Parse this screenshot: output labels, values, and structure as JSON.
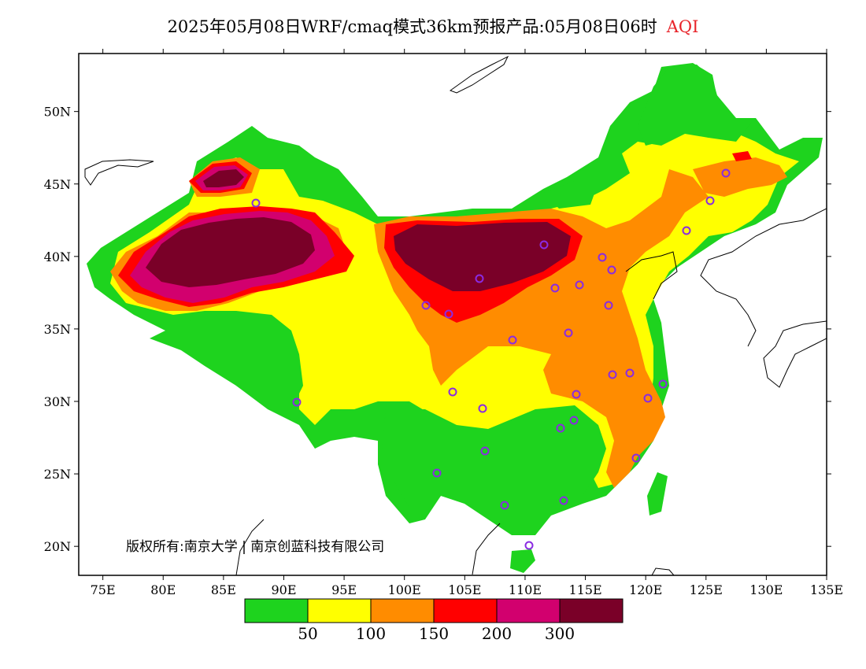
{
  "title": {
    "text": "2025年05月08日WRF/cmaq模式36km预报产品:05月08日06时",
    "variable": "AQI"
  },
  "copyright": "版权所有:南京大学 | 南京创蓝科技有限公司",
  "axes": {
    "x_ticks": [
      "75E",
      "80E",
      "85E",
      "90E",
      "95E",
      "100E",
      "105E",
      "110E",
      "115E",
      "120E",
      "125E",
      "130E",
      "135E"
    ],
    "y_ticks": [
      "50N",
      "45N",
      "40N",
      "35N",
      "30N",
      "25N",
      "20N"
    ]
  },
  "legend": {
    "colors": [
      "#1ed31e",
      "#ffff00",
      "#ff8c00",
      "#ff0000",
      "#d2006e",
      "#7a0028"
    ],
    "labels": [
      "50",
      "100",
      "150",
      "200",
      "300"
    ]
  },
  "colors": {
    "good": "#1ed31e",
    "moderate": "#ffff00",
    "unhealthy_sensitive": "#ff8c00",
    "unhealthy": "#ff0000",
    "very_unhealthy": "#d2006e",
    "hazardous": "#7a0028",
    "station_marker": "#8a2be2"
  }
}
